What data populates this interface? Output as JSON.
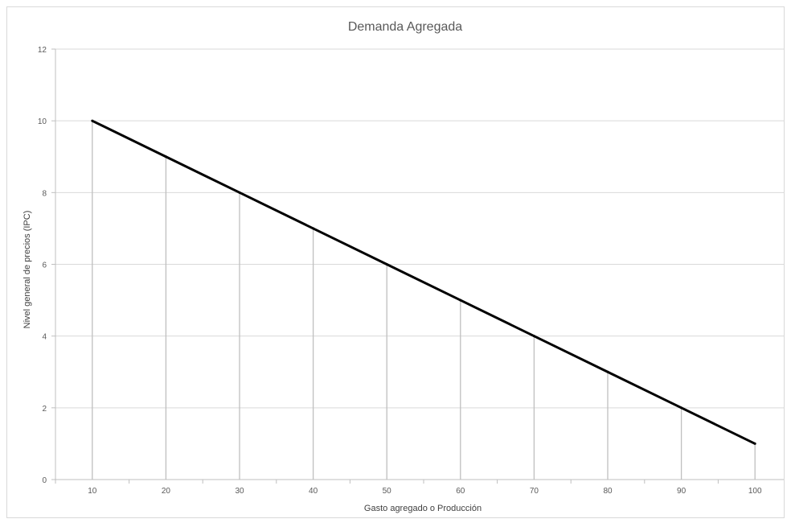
{
  "chart_data": {
    "type": "line",
    "title": "Demanda Agregada",
    "xlabel": "Gasto agregado o Producción",
    "ylabel": "Nivel general de precios (IPC)",
    "x": [
      10,
      20,
      30,
      40,
      50,
      60,
      70,
      80,
      90,
      100
    ],
    "y": [
      10,
      9,
      8,
      7,
      6,
      5,
      4,
      3,
      2,
      1
    ],
    "x_ticks": [
      "10",
      "20",
      "30",
      "40",
      "50",
      "60",
      "70",
      "80",
      "90",
      "100"
    ],
    "y_ticks": [
      "0",
      "2",
      "4",
      "6",
      "8",
      "10",
      "12"
    ],
    "ylim": [
      0,
      12
    ],
    "grid": "horizontal",
    "drop_lines": true,
    "legend": "none",
    "colors": {
      "line": "#000000",
      "drop_line": "#bfbfbf",
      "grid": "#d9d9d9",
      "axis": "#bfbfbf"
    }
  }
}
